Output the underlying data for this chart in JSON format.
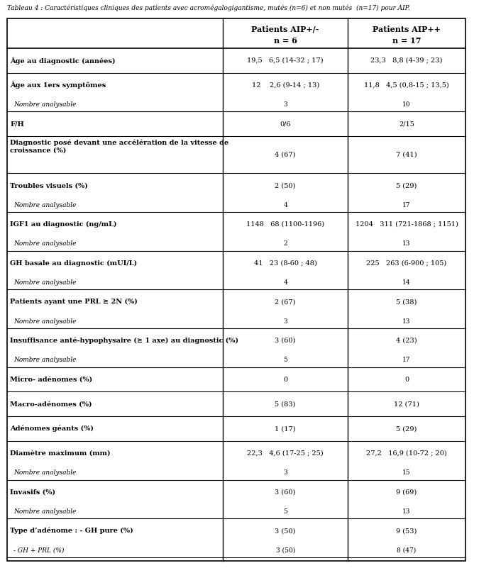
{
  "title": "Tableau 4 : Caractéristiques cliniques des patients avec acromégalogigantisme, mutés (n=6) et non mutés  (n=17) pour AIP.",
  "col_headers": [
    [
      "Patients AIP+/-",
      "n = 6"
    ],
    [
      "Patients AIP++",
      "n = 17"
    ]
  ],
  "rows": [
    {
      "label": "Âge au diagnostic (années)",
      "bold": true,
      "val1": "19,5   6,5 (14-32 ; 17)",
      "val2": "23,3   8,8 (4-39 ; 23)",
      "sub": null
    },
    {
      "label": "Âge aux 1ers symptômes",
      "bold": true,
      "val1": "12    2,6 (9-14 ; 13)",
      "val2": "11,8   4,5 (0,8-15 ; 13,5)",
      "sub": {
        "label": "Nombre analysable",
        "val1": "3",
        "val2": "10"
      }
    },
    {
      "label": "F/H",
      "bold": true,
      "val1": "0/6",
      "val2": "2/15",
      "sub": null
    },
    {
      "label": "Diagnostic posé devant une accélération de la vitesse de\ncroissance (%)",
      "bold": true,
      "val1": "4 (67)",
      "val2": "7 (41)",
      "sub": null
    },
    {
      "label": "Troubles visuels (%)",
      "bold": true,
      "val1": "2 (50)",
      "val2": "5 (29)",
      "sub": {
        "label": "Nombre analysable",
        "val1": "4",
        "val2": "17"
      }
    },
    {
      "label": "IGF1 au diagnostic (ng/mL)",
      "bold": true,
      "val1": "1148   68 (1100-1196)",
      "val2": "1204   311 (721-1868 ; 1151)",
      "sub": {
        "label": "Nombre analysable",
        "val1": "2",
        "val2": "13"
      }
    },
    {
      "label": "GH basale au diagnostic (mUI/L)",
      "bold": true,
      "val1": "41   23 (8-60 ; 48)",
      "val2": "225   263 (6-900 ; 105)",
      "sub": {
        "label": "Nombre analysable",
        "val1": "4",
        "val2": "14"
      }
    },
    {
      "label": "Patients ayant une PRL ≥ 2N (%)",
      "bold": true,
      "val1": "2 (67)",
      "val2": "5 (38)",
      "sub": {
        "label": "Nombre analysable",
        "val1": "3",
        "val2": "13"
      }
    },
    {
      "label": "Insuffisance anté-hypophysaire (≥ 1 axe) au diagnostic (%)",
      "bold": true,
      "val1": "3 (60)",
      "val2": "4 (23)",
      "sub": {
        "label": "Nombre analysable",
        "val1": "5",
        "val2": "17"
      }
    },
    {
      "label": "Micro- adénomes (%)",
      "bold": true,
      "val1": "0",
      "val2": "0",
      "sub": null
    },
    {
      "label": "Macro-adénomes (%)",
      "bold": true,
      "val1": "5 (83)",
      "val2": "12 (71)",
      "sub": null
    },
    {
      "label": "Adénomes géants (%)",
      "bold": true,
      "val1": "1 (17)",
      "val2": "5 (29)",
      "sub": null
    },
    {
      "label": "Diamètre maximum (mm)",
      "bold": true,
      "val1": "22,3   4,6 (17-25 ; 25)",
      "val2": "27,2   16,9 (10-72 ; 20)",
      "sub": {
        "label": "Nombre analysable",
        "val1": "3",
        "val2": "15"
      }
    },
    {
      "label": "Invasifs (%)",
      "bold": true,
      "val1": "3 (60)",
      "val2": "9 (69)",
      "sub": {
        "label": "Nombre analysable",
        "val1": "5",
        "val2": "13"
      }
    },
    {
      "label": "Type d’adénome : - GH pure (%)",
      "bold": true,
      "val1": "3 (50)",
      "val2": "9 (53)",
      "sub": {
        "label": "- GH + PRL (%)",
        "val1": "3 (50)",
        "val2": "8 (47)"
      }
    }
  ],
  "bg_color": "#ffffff",
  "border_color": "#000000",
  "text_color": "#000000",
  "header_bg": "#ffffff"
}
